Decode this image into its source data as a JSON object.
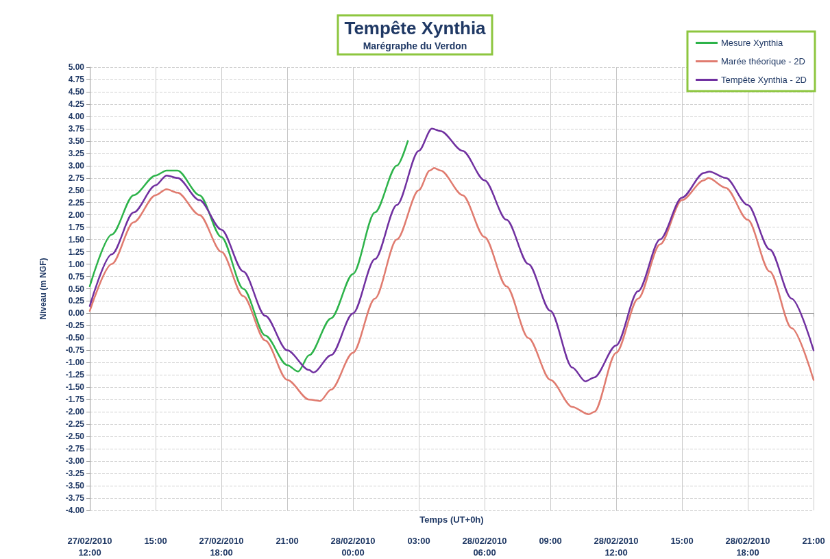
{
  "chart_data": {
    "type": "line",
    "title": "Tempête Xynthia",
    "subtitle": "Marégraphe du Verdon",
    "xlabel": "Temps (UT+0h)",
    "ylabel": "Niveau (m NGF)",
    "xlim": [
      "2010-02-27T12:00",
      "2010-02-28T21:00"
    ],
    "xticks": [
      {
        "value": "2010-02-27T12:00",
        "label": "27/02/2010\n12:00"
      },
      {
        "value": "2010-02-27T15:00",
        "label": "15:00"
      },
      {
        "value": "2010-02-27T18:00",
        "label": "27/02/2010\n18:00"
      },
      {
        "value": "2010-02-27T21:00",
        "label": "21:00"
      },
      {
        "value": "2010-02-28T00:00",
        "label": "28/02/2010\n00:00"
      },
      {
        "value": "2010-02-28T03:00",
        "label": "03:00"
      },
      {
        "value": "2010-02-28T06:00",
        "label": "28/02/2010\n06:00"
      },
      {
        "value": "2010-02-28T09:00",
        "label": "09:00"
      },
      {
        "value": "2010-02-28T12:00",
        "label": "28/02/2010\n12:00"
      },
      {
        "value": "2010-02-28T15:00",
        "label": "15:00"
      },
      {
        "value": "2010-02-28T18:00",
        "label": "28/02/2010\n18:00"
      },
      {
        "value": "2010-02-28T21:00",
        "label": "21:00"
      }
    ],
    "ylim": [
      -4,
      5
    ],
    "yticks": [
      {
        "value": -4,
        "label": "-4.00"
      },
      {
        "value": -3.75,
        "label": "-3.75"
      },
      {
        "value": -3.5,
        "label": "-3.50"
      },
      {
        "value": -3.25,
        "label": "-3.25"
      },
      {
        "value": -3,
        "label": "-3.00"
      },
      {
        "value": -2.75,
        "label": "-2.75"
      },
      {
        "value": -2.5,
        "label": "-2.50"
      },
      {
        "value": -2.25,
        "label": "-2.25"
      },
      {
        "value": -2,
        "label": "-2.00"
      },
      {
        "value": -1.75,
        "label": "-1.75"
      },
      {
        "value": -1.5,
        "label": "-1.50"
      },
      {
        "value": -1.25,
        "label": "-1.25"
      },
      {
        "value": -1,
        "label": "-1.00"
      },
      {
        "value": -0.75,
        "label": "-0.75"
      },
      {
        "value": -0.5,
        "label": "-0.50"
      },
      {
        "value": -0.25,
        "label": "-0.25"
      },
      {
        "value": 0,
        "label": "0.00"
      },
      {
        "value": 0.25,
        "label": "0.25"
      },
      {
        "value": 0.5,
        "label": "0.50"
      },
      {
        "value": 0.75,
        "label": "0.75"
      },
      {
        "value": 1,
        "label": "1.00"
      },
      {
        "value": 1.25,
        "label": "1.25"
      },
      {
        "value": 1.5,
        "label": "1.50"
      },
      {
        "value": 1.75,
        "label": "1.75"
      },
      {
        "value": 2,
        "label": "2.00"
      },
      {
        "value": 2.25,
        "label": "2.25"
      },
      {
        "value": 2.5,
        "label": "2.50"
      },
      {
        "value": 2.75,
        "label": "2.75"
      },
      {
        "value": 3,
        "label": "3.00"
      },
      {
        "value": 3.25,
        "label": "3.25"
      },
      {
        "value": 3.5,
        "label": "3.50"
      },
      {
        "value": 3.75,
        "label": "3.75"
      },
      {
        "value": 4,
        "label": "4.00"
      },
      {
        "value": 4.25,
        "label": "4.25"
      },
      {
        "value": 4.5,
        "label": "4.50"
      },
      {
        "value": 4.75,
        "label": "4.75"
      },
      {
        "value": 5,
        "label": "5.00"
      }
    ],
    "grid": true,
    "legend": "top right",
    "marker": "none",
    "line_style": "solid",
    "series": [
      {
        "name": "Mesure Xynthia",
        "color": "#2db34a",
        "x": [
          "2010-02-27T12:00",
          "2010-02-27T13:00",
          "2010-02-27T14:00",
          "2010-02-27T15:00",
          "2010-02-27T15:30",
          "2010-02-27T16:00",
          "2010-02-27T17:00",
          "2010-02-27T18:00",
          "2010-02-27T19:00",
          "2010-02-27T20:00",
          "2010-02-27T21:00",
          "2010-02-27T21:30",
          "2010-02-27T22:00",
          "2010-02-27T23:00",
          "2010-02-28T00:00",
          "2010-02-28T01:00",
          "2010-02-28T02:00",
          "2010-02-28T02:30"
        ],
        "values": [
          0.55,
          1.6,
          2.4,
          2.8,
          2.9,
          2.9,
          2.4,
          1.55,
          0.5,
          -0.45,
          -1.05,
          -1.18,
          -0.85,
          -0.1,
          0.8,
          2.05,
          3.0,
          3.5
        ]
      },
      {
        "name": "Marée théorique - 2D",
        "color": "#e07b6f",
        "x": [
          "2010-02-27T12:00",
          "2010-02-27T13:00",
          "2010-02-27T14:00",
          "2010-02-27T15:00",
          "2010-02-27T15:30",
          "2010-02-27T16:00",
          "2010-02-27T17:00",
          "2010-02-27T18:00",
          "2010-02-27T19:00",
          "2010-02-27T20:00",
          "2010-02-27T21:00",
          "2010-02-27T22:00",
          "2010-02-27T22:30",
          "2010-02-27T23:00",
          "2010-02-28T00:00",
          "2010-02-28T01:00",
          "2010-02-28T02:00",
          "2010-02-28T03:00",
          "2010-02-28T03:30",
          "2010-02-28T03:42",
          "2010-02-28T04:00",
          "2010-02-28T05:00",
          "2010-02-28T06:00",
          "2010-02-28T07:00",
          "2010-02-28T08:00",
          "2010-02-28T09:00",
          "2010-02-28T10:00",
          "2010-02-28T10:45",
          "2010-02-28T11:00",
          "2010-02-28T12:00",
          "2010-02-28T13:00",
          "2010-02-28T14:00",
          "2010-02-28T15:00",
          "2010-02-28T16:00",
          "2010-02-28T16:12",
          "2010-02-28T17:00",
          "2010-02-28T18:00",
          "2010-02-28T19:00",
          "2010-02-28T20:00",
          "2010-02-28T21:00"
        ],
        "values": [
          0.05,
          1.0,
          1.85,
          2.4,
          2.52,
          2.45,
          2.0,
          1.25,
          0.35,
          -0.55,
          -1.35,
          -1.75,
          -1.78,
          -1.55,
          -0.8,
          0.3,
          1.5,
          2.5,
          2.9,
          2.95,
          2.9,
          2.4,
          1.55,
          0.55,
          -0.5,
          -1.35,
          -1.9,
          -2.05,
          -2.0,
          -0.8,
          0.3,
          1.4,
          2.3,
          2.7,
          2.75,
          2.55,
          1.9,
          0.85,
          -0.3,
          -1.35
        ]
      },
      {
        "name": "Tempête Xynthia - 2D",
        "color": "#7030a0",
        "x": [
          "2010-02-27T12:00",
          "2010-02-27T13:00",
          "2010-02-27T14:00",
          "2010-02-27T15:00",
          "2010-02-27T15:30",
          "2010-02-27T16:00",
          "2010-02-27T17:00",
          "2010-02-27T18:00",
          "2010-02-27T19:00",
          "2010-02-27T20:00",
          "2010-02-27T21:00",
          "2010-02-27T22:00",
          "2010-02-27T22:12",
          "2010-02-27T23:00",
          "2010-02-28T00:00",
          "2010-02-28T01:00",
          "2010-02-28T02:00",
          "2010-02-28T03:00",
          "2010-02-28T03:36",
          "2010-02-28T04:00",
          "2010-02-28T05:00",
          "2010-02-28T06:00",
          "2010-02-28T07:00",
          "2010-02-28T08:00",
          "2010-02-28T09:00",
          "2010-02-28T10:00",
          "2010-02-28T10:36",
          "2010-02-28T11:00",
          "2010-02-28T12:00",
          "2010-02-28T13:00",
          "2010-02-28T14:00",
          "2010-02-28T15:00",
          "2010-02-28T16:00",
          "2010-02-28T16:15",
          "2010-02-28T17:00",
          "2010-02-28T18:00",
          "2010-02-28T19:00",
          "2010-02-28T20:00",
          "2010-02-28T21:00"
        ],
        "values": [
          0.15,
          1.2,
          2.05,
          2.6,
          2.8,
          2.75,
          2.3,
          1.7,
          0.85,
          -0.05,
          -0.75,
          -1.15,
          -1.2,
          -0.85,
          0.0,
          1.1,
          2.2,
          3.3,
          3.75,
          3.7,
          3.3,
          2.7,
          1.9,
          1.0,
          0.05,
          -1.1,
          -1.38,
          -1.3,
          -0.65,
          0.45,
          1.5,
          2.35,
          2.85,
          2.88,
          2.75,
          2.2,
          1.3,
          0.3,
          -0.75
        ]
      }
    ]
  }
}
